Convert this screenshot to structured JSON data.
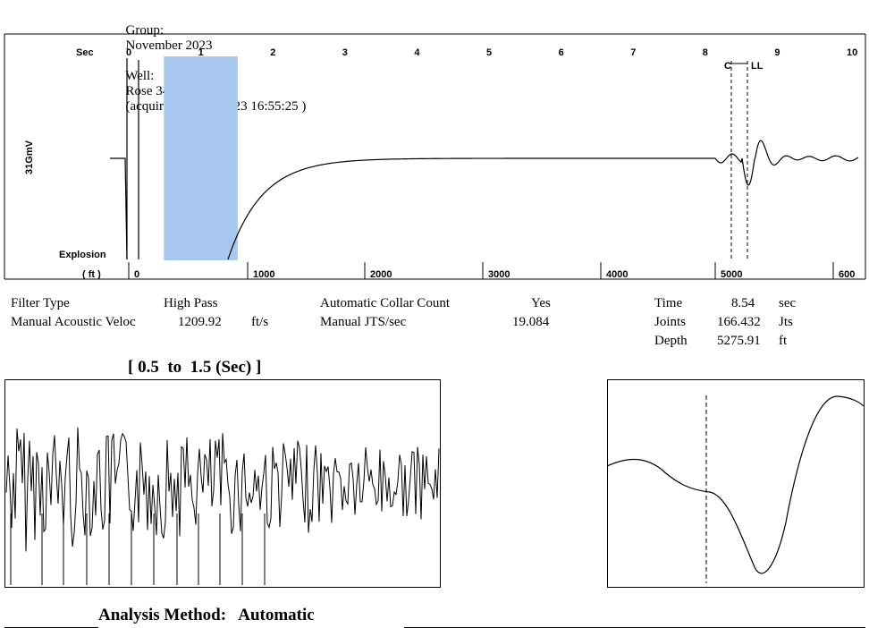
{
  "header": {
    "group_label": "Group:",
    "group_value": "November 2023",
    "well_label": "Well:",
    "well_value": "Rose 3408 2-31H",
    "acquired_text": "(acquired on: 11/18/23 16:55:25 )"
  },
  "info": {
    "filter_type_label": "Filter Type",
    "filter_type_value": "High Pass",
    "manual_vel_label": "Manual Acoustic Veloc",
    "manual_vel_value": "1209.92",
    "manual_vel_unit": "ft/s",
    "auto_collar_label": "Automatic Collar Count",
    "auto_collar_value": "Yes",
    "manual_jts_label": "Manual JTS/sec",
    "manual_jts_value": "19.084",
    "time_label": "Time",
    "time_value": "8.54",
    "time_unit": "sec",
    "joints_label": "Joints",
    "joints_value": "166.432",
    "joints_unit": "Jts",
    "depth_label": "Depth",
    "depth_value": "5275.91",
    "depth_unit": "ft"
  },
  "window_title": "[ 0.5  to  1.5 (Sec) ]",
  "analysis_method": "Analysis Method:   Automatic",
  "chart_data": [
    {
      "type": "line",
      "top_axis_label": "Sec",
      "top_ticks": [
        "0",
        "1",
        "2",
        "3",
        "4",
        "5",
        "6",
        "7",
        "8",
        "9",
        "10"
      ],
      "bottom_axis_label": "( ft )",
      "bottom_ticks": [
        "0",
        "1000",
        "2000",
        "3000",
        "4000",
        "5000",
        "600"
      ],
      "y_label": "31GmV",
      "event_label": "Explosion",
      "markers": [
        {
          "label": "C",
          "x": 8.4
        },
        {
          "label": "LL",
          "x": 8.54
        }
      ],
      "highlight_window": {
        "from": 0.5,
        "to": 1.5,
        "color": "#a8c8f0"
      },
      "line_color": "#000000"
    },
    {
      "type": "line",
      "range_sec": [
        0.5,
        1.5
      ],
      "line_color": "#000000"
    },
    {
      "type": "line",
      "marker": "dashed vertical line",
      "line_color": "#000000"
    }
  ]
}
